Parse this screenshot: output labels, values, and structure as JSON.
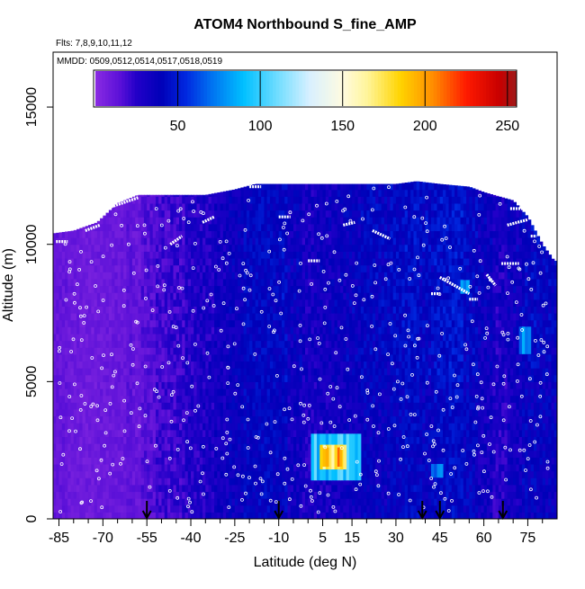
{
  "chart_data": {
    "type": "heatmap",
    "title": "ATOM4 Northbound S_fine_AMP",
    "subtitle_flights": "Flts: 7,8,9,10,11,12",
    "subtitle_dates": "MMDD: 0509,0512,0514,0517,0518,0519",
    "xlabel": "Latitude (deg N)",
    "ylabel": "Altitude (m)",
    "xlim": [
      -87,
      85
    ],
    "ylim": [
      0,
      17000
    ],
    "x_ticks": [
      -85,
      -70,
      -55,
      -40,
      -25,
      -10,
      5,
      15,
      30,
      45,
      60,
      75
    ],
    "x_minor_ticks": [
      -80,
      -75,
      -65,
      -60,
      -50,
      -45,
      -35,
      -30,
      -20,
      -15,
      -5,
      0,
      10,
      20,
      25,
      35,
      40,
      50,
      55,
      65,
      70,
      80
    ],
    "y_ticks": [
      0,
      5000,
      10000,
      15000
    ],
    "colorbar": {
      "range": [
        0,
        255
      ],
      "ticks": [
        50,
        100,
        150,
        200,
        250
      ],
      "tick_labels": [
        "50",
        "100",
        "150",
        "200",
        "250"
      ],
      "stops": [
        {
          "v": 0,
          "c": "#8a2be2"
        },
        {
          "v": 15,
          "c": "#5a10d8"
        },
        {
          "v": 25,
          "c": "#2200c8"
        },
        {
          "v": 40,
          "c": "#0000b8"
        },
        {
          "v": 55,
          "c": "#0028e0"
        },
        {
          "v": 70,
          "c": "#0070f0"
        },
        {
          "v": 90,
          "c": "#00c0ff"
        },
        {
          "v": 110,
          "c": "#6edcff"
        },
        {
          "v": 130,
          "c": "#d8f0ff"
        },
        {
          "v": 150,
          "c": "#fffbe0"
        },
        {
          "v": 165,
          "c": "#fff59a"
        },
        {
          "v": 185,
          "c": "#ffd400"
        },
        {
          "v": 205,
          "c": "#ff8c00"
        },
        {
          "v": 225,
          "c": "#ff1a00"
        },
        {
          "v": 245,
          "c": "#c80000"
        },
        {
          "v": 255,
          "c": "#a01818"
        }
      ]
    },
    "ceiling": [
      [
        -87,
        10400
      ],
      [
        -80,
        10500
      ],
      [
        -72,
        10800
      ],
      [
        -65,
        11500
      ],
      [
        -58,
        11800
      ],
      [
        -45,
        11800
      ],
      [
        -35,
        11800
      ],
      [
        -25,
        12000
      ],
      [
        -18,
        12200
      ],
      [
        -10,
        12200
      ],
      [
        0,
        12200
      ],
      [
        10,
        12200
      ],
      [
        20,
        12200
      ],
      [
        30,
        12200
      ],
      [
        37,
        12300
      ],
      [
        45,
        12200
      ],
      [
        55,
        12100
      ],
      [
        60,
        11900
      ],
      [
        70,
        11600
      ],
      [
        75,
        11000
      ],
      [
        80,
        10000
      ],
      [
        84,
        9400
      ]
    ],
    "columns": [
      {
        "lat": -85,
        "base": 8,
        "amp": 8
      },
      {
        "lat": -80,
        "base": 6,
        "amp": 8
      },
      {
        "lat": -75,
        "base": 5,
        "amp": 6
      },
      {
        "lat": -70,
        "base": 6,
        "amp": 6
      },
      {
        "lat": -65,
        "base": 7,
        "amp": 8
      },
      {
        "lat": -60,
        "base": 10,
        "amp": 10
      },
      {
        "lat": -55,
        "base": 14,
        "amp": 12
      },
      {
        "lat": -50,
        "base": 18,
        "amp": 14
      },
      {
        "lat": -45,
        "base": 20,
        "amp": 16
      },
      {
        "lat": -40,
        "base": 24,
        "amp": 16
      },
      {
        "lat": -35,
        "base": 26,
        "amp": 18
      },
      {
        "lat": -30,
        "base": 30,
        "amp": 16
      },
      {
        "lat": -25,
        "base": 34,
        "amp": 16
      },
      {
        "lat": -20,
        "base": 38,
        "amp": 16
      },
      {
        "lat": -15,
        "base": 40,
        "amp": 14
      },
      {
        "lat": -10,
        "base": 38,
        "amp": 16
      },
      {
        "lat": -5,
        "base": 30,
        "amp": 18
      },
      {
        "lat": 0,
        "base": 26,
        "amp": 18
      },
      {
        "lat": 5,
        "base": 28,
        "amp": 18
      },
      {
        "lat": 10,
        "base": 30,
        "amp": 16
      },
      {
        "lat": 15,
        "base": 32,
        "amp": 16
      },
      {
        "lat": 20,
        "base": 36,
        "amp": 16
      },
      {
        "lat": 25,
        "base": 34,
        "amp": 18
      },
      {
        "lat": 30,
        "base": 38,
        "amp": 16
      },
      {
        "lat": 35,
        "base": 40,
        "amp": 16
      },
      {
        "lat": 40,
        "base": 36,
        "amp": 18
      },
      {
        "lat": 45,
        "base": 40,
        "amp": 16
      },
      {
        "lat": 50,
        "base": 42,
        "amp": 16
      },
      {
        "lat": 55,
        "base": 36,
        "amp": 18
      },
      {
        "lat": 60,
        "base": 30,
        "amp": 18
      },
      {
        "lat": 65,
        "base": 24,
        "amp": 18
      },
      {
        "lat": 70,
        "base": 30,
        "amp": 18
      },
      {
        "lat": 75,
        "base": 36,
        "amp": 18
      },
      {
        "lat": 80,
        "base": 34,
        "amp": 18
      }
    ],
    "hotspots": [
      {
        "lat0": 1,
        "lat1": 18,
        "alt0": 1400,
        "alt1": 3100,
        "value": 95
      },
      {
        "lat0": 4,
        "lat1": 13,
        "alt0": 1800,
        "alt1": 2700,
        "value": 170
      },
      {
        "lat0": 5,
        "lat1": 7,
        "alt0": 1900,
        "alt1": 2600,
        "value": 205
      },
      {
        "lat0": 10,
        "lat1": 11.5,
        "alt0": 1900,
        "alt1": 2600,
        "value": 200
      },
      {
        "lat0": 42,
        "lat1": 46,
        "alt0": 1500,
        "alt1": 2000,
        "value": 70
      },
      {
        "lat0": 72,
        "lat1": 76,
        "alt0": 6000,
        "alt1": 7000,
        "value": 75
      },
      {
        "lat0": 52,
        "lat1": 55,
        "alt0": 8200,
        "alt1": 8700,
        "value": 80
      }
    ],
    "flight_segments": [
      {
        "lat0": -86,
        "alt0": 10100,
        "lat1": -82,
        "alt1": 10100
      },
      {
        "lat0": -76,
        "alt0": 10500,
        "lat1": -71,
        "alt1": 10700
      },
      {
        "lat0": -69,
        "alt0": 11300,
        "lat1": -58,
        "alt1": 11700
      },
      {
        "lat0": -47,
        "alt0": 10000,
        "lat1": -43,
        "alt1": 10300
      },
      {
        "lat0": -36,
        "alt0": 10800,
        "lat1": -32,
        "alt1": 11000
      },
      {
        "lat0": -20,
        "alt0": 12100,
        "lat1": -16,
        "alt1": 12100
      },
      {
        "lat0": -10,
        "alt0": 11000,
        "lat1": -6,
        "alt1": 11000
      },
      {
        "lat0": 12,
        "alt0": 10700,
        "lat1": 16,
        "alt1": 10800
      },
      {
        "lat0": 22,
        "alt0": 10500,
        "lat1": 28,
        "alt1": 10200
      },
      {
        "lat0": 0,
        "alt0": 9400,
        "lat1": 4,
        "alt1": 9400
      },
      {
        "lat0": 36,
        "alt0": 12700,
        "lat1": 36.5,
        "alt1": 13000
      },
      {
        "lat0": 42,
        "alt0": 8200,
        "lat1": 45,
        "alt1": 8200
      },
      {
        "lat0": 45,
        "alt0": 8800,
        "lat1": 55,
        "alt1": 8200
      },
      {
        "lat0": 55,
        "alt0": 8000,
        "lat1": 58,
        "alt1": 8000
      },
      {
        "lat0": 61,
        "alt0": 8900,
        "lat1": 64,
        "alt1": 8500
      },
      {
        "lat0": 66,
        "alt0": 9300,
        "lat1": 72,
        "alt1": 9300
      },
      {
        "lat0": 68,
        "alt0": 10700,
        "lat1": 75,
        "alt1": 10900
      },
      {
        "lat0": 69,
        "alt0": 11300,
        "lat1": 74,
        "alt1": 11300
      },
      {
        "lat0": 76,
        "alt0": 10300,
        "lat1": 78,
        "alt1": 10300
      }
    ],
    "descent_arrows": [
      -55,
      -10,
      39,
      45,
      66.5
    ]
  }
}
